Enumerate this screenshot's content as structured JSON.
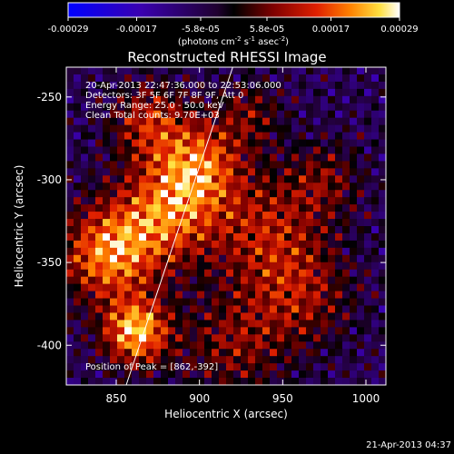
{
  "chart_data": {
    "type": "heatmap",
    "title": "Reconstructed RHESSI Image",
    "xlabel": "Heliocentric X (arcsec)",
    "ylabel": "Heliocentric Y (arcsec)",
    "xlim": [
      820,
      1012
    ],
    "ylim": [
      -424,
      -232
    ],
    "x_ticks": [
      "850",
      "900",
      "950",
      "1000"
    ],
    "x_tick_values": [
      850,
      900,
      950,
      1000
    ],
    "y_ticks": [
      "-250",
      "-300",
      "-350",
      "-400"
    ],
    "y_tick_values": [
      -250,
      -300,
      -350,
      -400
    ],
    "colorbar": {
      "min": -0.00029,
      "max": 0.00029,
      "tick_labels": [
        "-0.00029",
        "-0.00017",
        "-5.8e-05",
        "5.8e-05",
        "0.00017",
        "0.00029"
      ],
      "tick_values": [
        -0.00029,
        -0.00017,
        -5.8e-05,
        5.8e-05,
        0.00017,
        0.00029
      ],
      "units_label": "(photons cm",
      "units_exp1": "-2",
      "units_mid": " s",
      "units_exp2": "-1",
      "units_mid2": " asec",
      "units_exp3": "-2",
      "units_end": ")"
    },
    "annotations": {
      "time_range": "20-Apr-2013 22:47:36.000 to 22:53:06.000",
      "detectors": "Detectors: 3F 5F 6F 7F 8F 9F, Att 0",
      "energy": "Energy Range: 25.0 - 50.0 keV",
      "clean": "Clean    Total counts: 9.70E+03",
      "peak": "Position of Peak = [862,-392]"
    },
    "limb_line": {
      "x": [
        856,
        920
      ],
      "y": [
        -424,
        -232
      ]
    },
    "hot_spots": [
      {
        "x": 862,
        "y": -392,
        "amp": 1.0,
        "sigma": 14
      },
      {
        "x": 845,
        "y": -345,
        "amp": 0.85,
        "sigma": 20
      },
      {
        "x": 880,
        "y": -320,
        "amp": 0.75,
        "sigma": 22
      },
      {
        "x": 900,
        "y": -290,
        "amp": 0.7,
        "sigma": 18
      },
      {
        "x": 870,
        "y": -265,
        "amp": 0.55,
        "sigma": 16
      },
      {
        "x": 940,
        "y": -330,
        "amp": 0.5,
        "sigma": 24
      },
      {
        "x": 960,
        "y": -370,
        "amp": 0.45,
        "sigma": 22
      },
      {
        "x": 920,
        "y": -400,
        "amp": 0.4,
        "sigma": 22
      },
      {
        "x": 975,
        "y": -300,
        "amp": 0.35,
        "sigma": 16
      },
      {
        "x": 930,
        "y": -260,
        "amp": 0.35,
        "sigma": 14
      }
    ],
    "grid": false
  },
  "footer": {
    "timestamp": "21-Apr-2013 04:37"
  }
}
